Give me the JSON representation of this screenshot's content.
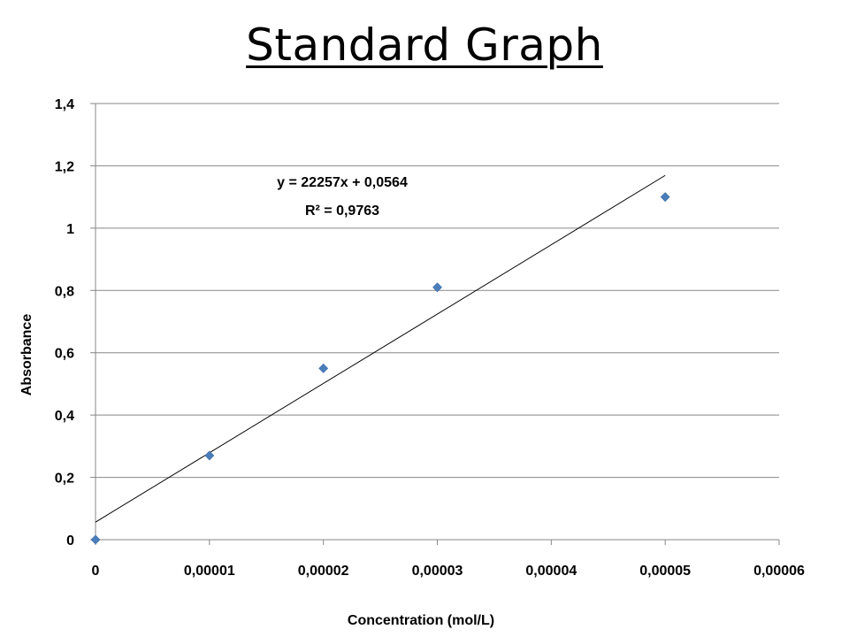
{
  "chart_data": {
    "type": "scatter",
    "title": "Standard Graph",
    "xlabel": "Concentration (mol/L)",
    "ylabel": "Absorbance",
    "xlim": [
      0,
      6e-05
    ],
    "ylim": [
      0,
      1.4
    ],
    "xticks": [
      "0",
      "0,00001",
      "0,00002",
      "0,00003",
      "0,00004",
      "0,00005",
      "0,00006"
    ],
    "xtick_values": [
      0,
      1e-05,
      2e-05,
      3e-05,
      4e-05,
      5e-05,
      6e-05
    ],
    "yticks": [
      "0",
      "0,2",
      "0,4",
      "0,6",
      "0,8",
      "1",
      "1,2",
      "1,4"
    ],
    "ytick_values": [
      0,
      0.2,
      0.4,
      0.6,
      0.8,
      1.0,
      1.2,
      1.4
    ],
    "grid": "horizontal",
    "series": [
      {
        "x": [
          0,
          1e-05,
          2e-05,
          3e-05,
          5e-05
        ],
        "y": [
          0,
          0.27,
          0.55,
          0.81,
          1.1
        ]
      }
    ],
    "trendline": {
      "type": "linear",
      "slope": 22257,
      "intercept": 0.0564,
      "x_range": [
        0,
        5e-05
      ],
      "equation_label": "y = 22257x + 0,0564",
      "r2_label": "R² = 0,9763"
    },
    "colors": {
      "marker": "#4a7ebb",
      "grid": "#878787",
      "trendline": "#000000"
    }
  }
}
